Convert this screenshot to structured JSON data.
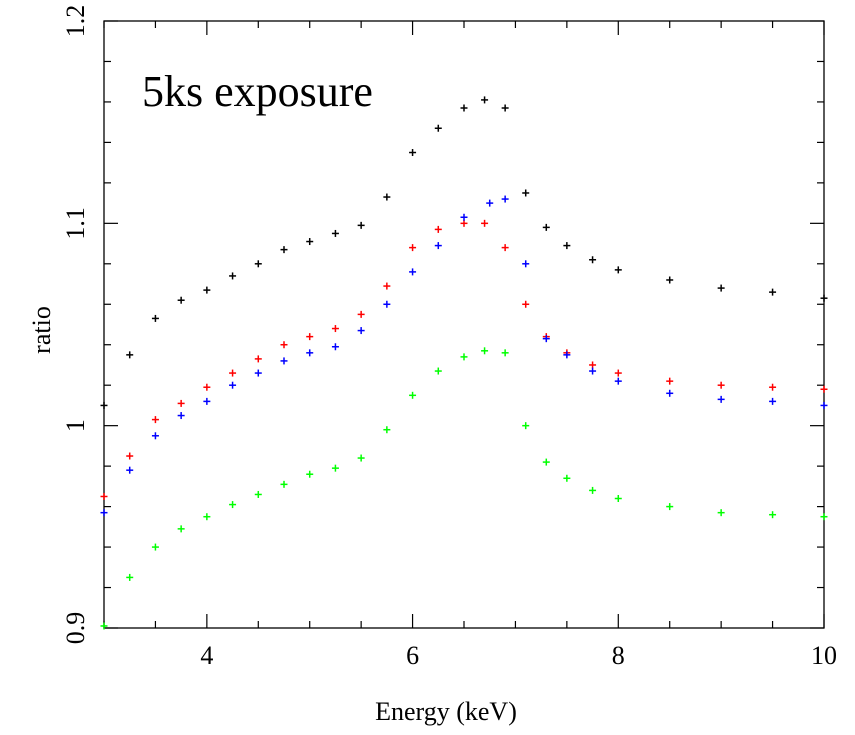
{
  "chart_data": {
    "type": "scatter",
    "annotation": "5ks exposure",
    "xlabel": "Energy (keV)",
    "ylabel": "ratio",
    "xlim": [
      3.0,
      10.0
    ],
    "ylim": [
      0.9,
      1.2
    ],
    "xticks": [
      4,
      6,
      8,
      10
    ],
    "xtick_labels": [
      "4",
      "6",
      "8",
      "10"
    ],
    "yticks": [
      0.9,
      1.0,
      1.1,
      1.2
    ],
    "ytick_labels": [
      "0.9",
      "1",
      "1.1",
      "1.2"
    ],
    "grid": false,
    "legend": "none",
    "marker": "cross with error bars",
    "series": [
      {
        "color": "#000000",
        "x": [
          3.0,
          3.25,
          3.5,
          3.75,
          4.0,
          4.25,
          4.5,
          4.75,
          5.0,
          5.25,
          5.5,
          5.75,
          6.0,
          6.25,
          6.5,
          6.7,
          6.9,
          7.1,
          7.3,
          7.5,
          7.75,
          8.0,
          8.5,
          9.0,
          9.5,
          10.0
        ],
        "y": [
          1.01,
          1.035,
          1.053,
          1.062,
          1.067,
          1.074,
          1.08,
          1.087,
          1.091,
          1.095,
          1.099,
          1.113,
          1.135,
          1.147,
          1.157,
          1.161,
          1.157,
          1.115,
          1.098,
          1.089,
          1.082,
          1.077,
          1.072,
          1.068,
          1.066,
          1.063
        ]
      },
      {
        "color": "#ff0000",
        "x": [
          3.0,
          3.25,
          3.5,
          3.75,
          4.0,
          4.25,
          4.5,
          4.75,
          5.0,
          5.25,
          5.5,
          5.75,
          6.0,
          6.25,
          6.5,
          6.7,
          6.9,
          7.1,
          7.3,
          7.5,
          7.75,
          8.0,
          8.5,
          9.0,
          9.5,
          10.0
        ],
        "y": [
          0.965,
          0.985,
          1.003,
          1.011,
          1.019,
          1.026,
          1.033,
          1.04,
          1.044,
          1.048,
          1.055,
          1.069,
          1.088,
          1.097,
          1.1,
          1.1,
          1.088,
          1.06,
          1.044,
          1.036,
          1.03,
          1.026,
          1.022,
          1.02,
          1.019,
          1.018
        ]
      },
      {
        "color": "#0000ff",
        "x": [
          3.0,
          3.25,
          3.5,
          3.75,
          4.0,
          4.25,
          4.5,
          4.75,
          5.0,
          5.25,
          5.5,
          5.75,
          6.0,
          6.25,
          6.5,
          6.75,
          6.9,
          7.1,
          7.3,
          7.5,
          7.75,
          8.0,
          8.5,
          9.0,
          9.5,
          10.0
        ],
        "y": [
          0.957,
          0.978,
          0.995,
          1.005,
          1.012,
          1.02,
          1.026,
          1.032,
          1.036,
          1.039,
          1.047,
          1.06,
          1.076,
          1.089,
          1.103,
          1.11,
          1.112,
          1.08,
          1.043,
          1.035,
          1.027,
          1.022,
          1.016,
          1.013,
          1.012,
          1.01
        ]
      },
      {
        "color": "#00ff00",
        "x": [
          3.0,
          3.25,
          3.5,
          3.75,
          4.0,
          4.25,
          4.5,
          4.75,
          5.0,
          5.25,
          5.5,
          5.75,
          6.0,
          6.25,
          6.5,
          6.7,
          6.9,
          7.1,
          7.3,
          7.5,
          7.75,
          8.0,
          8.5,
          9.0,
          9.5,
          10.0
        ],
        "y": [
          0.901,
          0.925,
          0.94,
          0.949,
          0.955,
          0.961,
          0.966,
          0.971,
          0.976,
          0.979,
          0.984,
          0.998,
          1.015,
          1.027,
          1.034,
          1.037,
          1.036,
          1.0,
          0.982,
          0.974,
          0.968,
          0.964,
          0.96,
          0.957,
          0.956,
          0.955
        ]
      }
    ]
  }
}
